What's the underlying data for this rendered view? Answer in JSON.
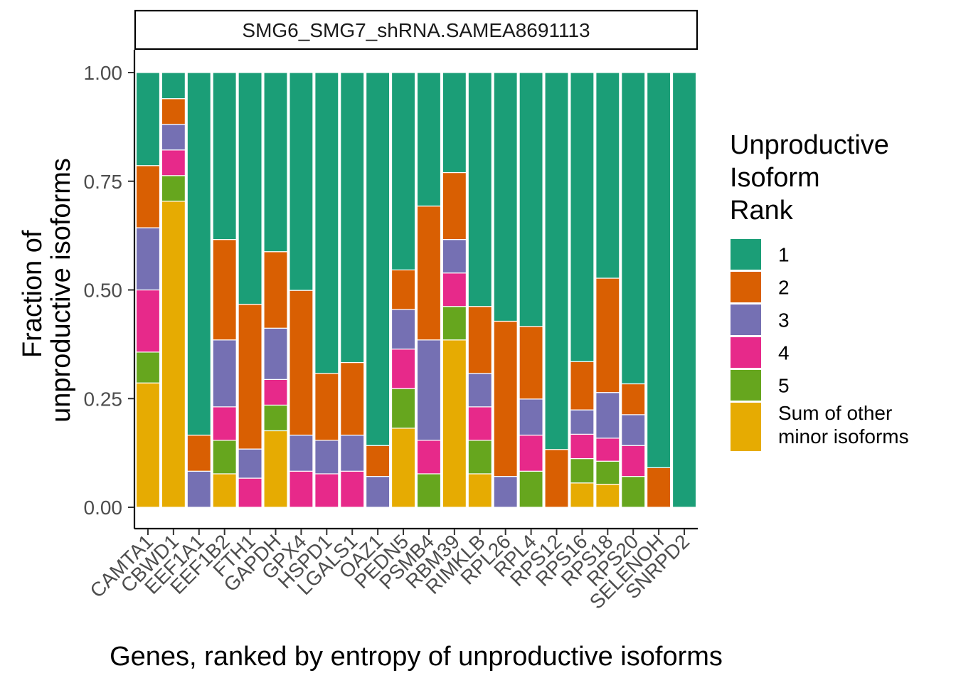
{
  "chart_data": {
    "type": "bar",
    "stacked": true,
    "facet_title": "SMG6_SMG7_shRNA.SAMEA8691113",
    "xlabel": "Genes, ranked by entropy of unproductive isoforms",
    "ylabel_lines": [
      "Fraction of",
      "unproductive isoforms"
    ],
    "ylim": [
      0,
      1
    ],
    "yticks": [
      "0.00",
      "0.25",
      "0.50",
      "0.75",
      "1.00"
    ],
    "ytick_values": [
      0,
      0.25,
      0.5,
      0.75,
      1.0
    ],
    "legend": {
      "title_lines": [
        "Unproductive",
        "Isoform",
        "Rank"
      ],
      "placement": "right",
      "entries": [
        {
          "label_lines": [
            "1"
          ],
          "color": "#1B9E77"
        },
        {
          "label_lines": [
            "2"
          ],
          "color": "#D95F02"
        },
        {
          "label_lines": [
            "3"
          ],
          "color": "#7570B3"
        },
        {
          "label_lines": [
            "4"
          ],
          "color": "#E7298A"
        },
        {
          "label_lines": [
            "5"
          ],
          "color": "#66A61E"
        },
        {
          "label_lines": [
            "Sum of other",
            "minor isoforms"
          ],
          "color": "#E6AB02"
        }
      ]
    },
    "stack_order": [
      "Sum of other minor isoforms",
      "5",
      "4",
      "3",
      "2",
      "1"
    ],
    "categories": [
      "CAMTA1",
      "CBWD1",
      "EEF1A1",
      "EEF1B2",
      "FTH1",
      "GAPDH",
      "GPX4",
      "HSPD1",
      "LGALS1",
      "OAZ1",
      "PEDN5",
      "PSMB4",
      "RBM39",
      "RIMKLB",
      "RPL26",
      "RPL4",
      "RPS12",
      "RPS16",
      "RPS18",
      "RPS20",
      "SELENOH",
      "SNRPD2"
    ],
    "series": [
      {
        "name": "Sum of other minor isoforms",
        "color": "#E6AB02",
        "values": [
          0.286,
          0.704,
          0,
          0.077,
          0,
          0.176,
          0,
          0,
          0,
          0,
          0.182,
          0,
          0.385,
          0.077,
          0,
          0,
          0,
          0.056,
          0.053,
          0,
          0,
          0
        ]
      },
      {
        "name": "5",
        "color": "#66A61E",
        "values": [
          0.071,
          0.059,
          0,
          0.077,
          0,
          0.059,
          0,
          0,
          0,
          0,
          0.091,
          0.077,
          0.077,
          0.077,
          0,
          0.083,
          0,
          0.056,
          0.053,
          0.071,
          0,
          0
        ]
      },
      {
        "name": "4",
        "color": "#E7298A",
        "values": [
          0.143,
          0.059,
          0,
          0.077,
          0.067,
          0.059,
          0.083,
          0.077,
          0.083,
          0,
          0.091,
          0.077,
          0.077,
          0.077,
          0,
          0.083,
          0,
          0.056,
          0.053,
          0.071,
          0,
          0
        ]
      },
      {
        "name": "3",
        "color": "#7570B3",
        "values": [
          0.143,
          0.059,
          0.083,
          0.154,
          0.067,
          0.118,
          0.083,
          0.077,
          0.083,
          0.071,
          0.091,
          0.231,
          0.077,
          0.077,
          0.071,
          0.083,
          0,
          0.056,
          0.105,
          0.071,
          0,
          0
        ]
      },
      {
        "name": "2",
        "color": "#D95F02",
        "values": [
          0.143,
          0.059,
          0.083,
          0.231,
          0.333,
          0.176,
          0.333,
          0.154,
          0.167,
          0.071,
          0.091,
          0.308,
          0.154,
          0.154,
          0.357,
          0.167,
          0.133,
          0.111,
          0.263,
          0.071,
          0.091,
          0
        ]
      },
      {
        "name": "1",
        "color": "#1B9E77",
        "values": [
          0.214,
          0.06,
          0.834,
          0.384,
          0.533,
          0.412,
          0.501,
          0.692,
          0.667,
          0.858,
          0.454,
          0.307,
          0.23,
          0.538,
          0.572,
          0.584,
          0.867,
          0.665,
          0.473,
          0.716,
          0.909,
          1.0
        ]
      }
    ]
  }
}
